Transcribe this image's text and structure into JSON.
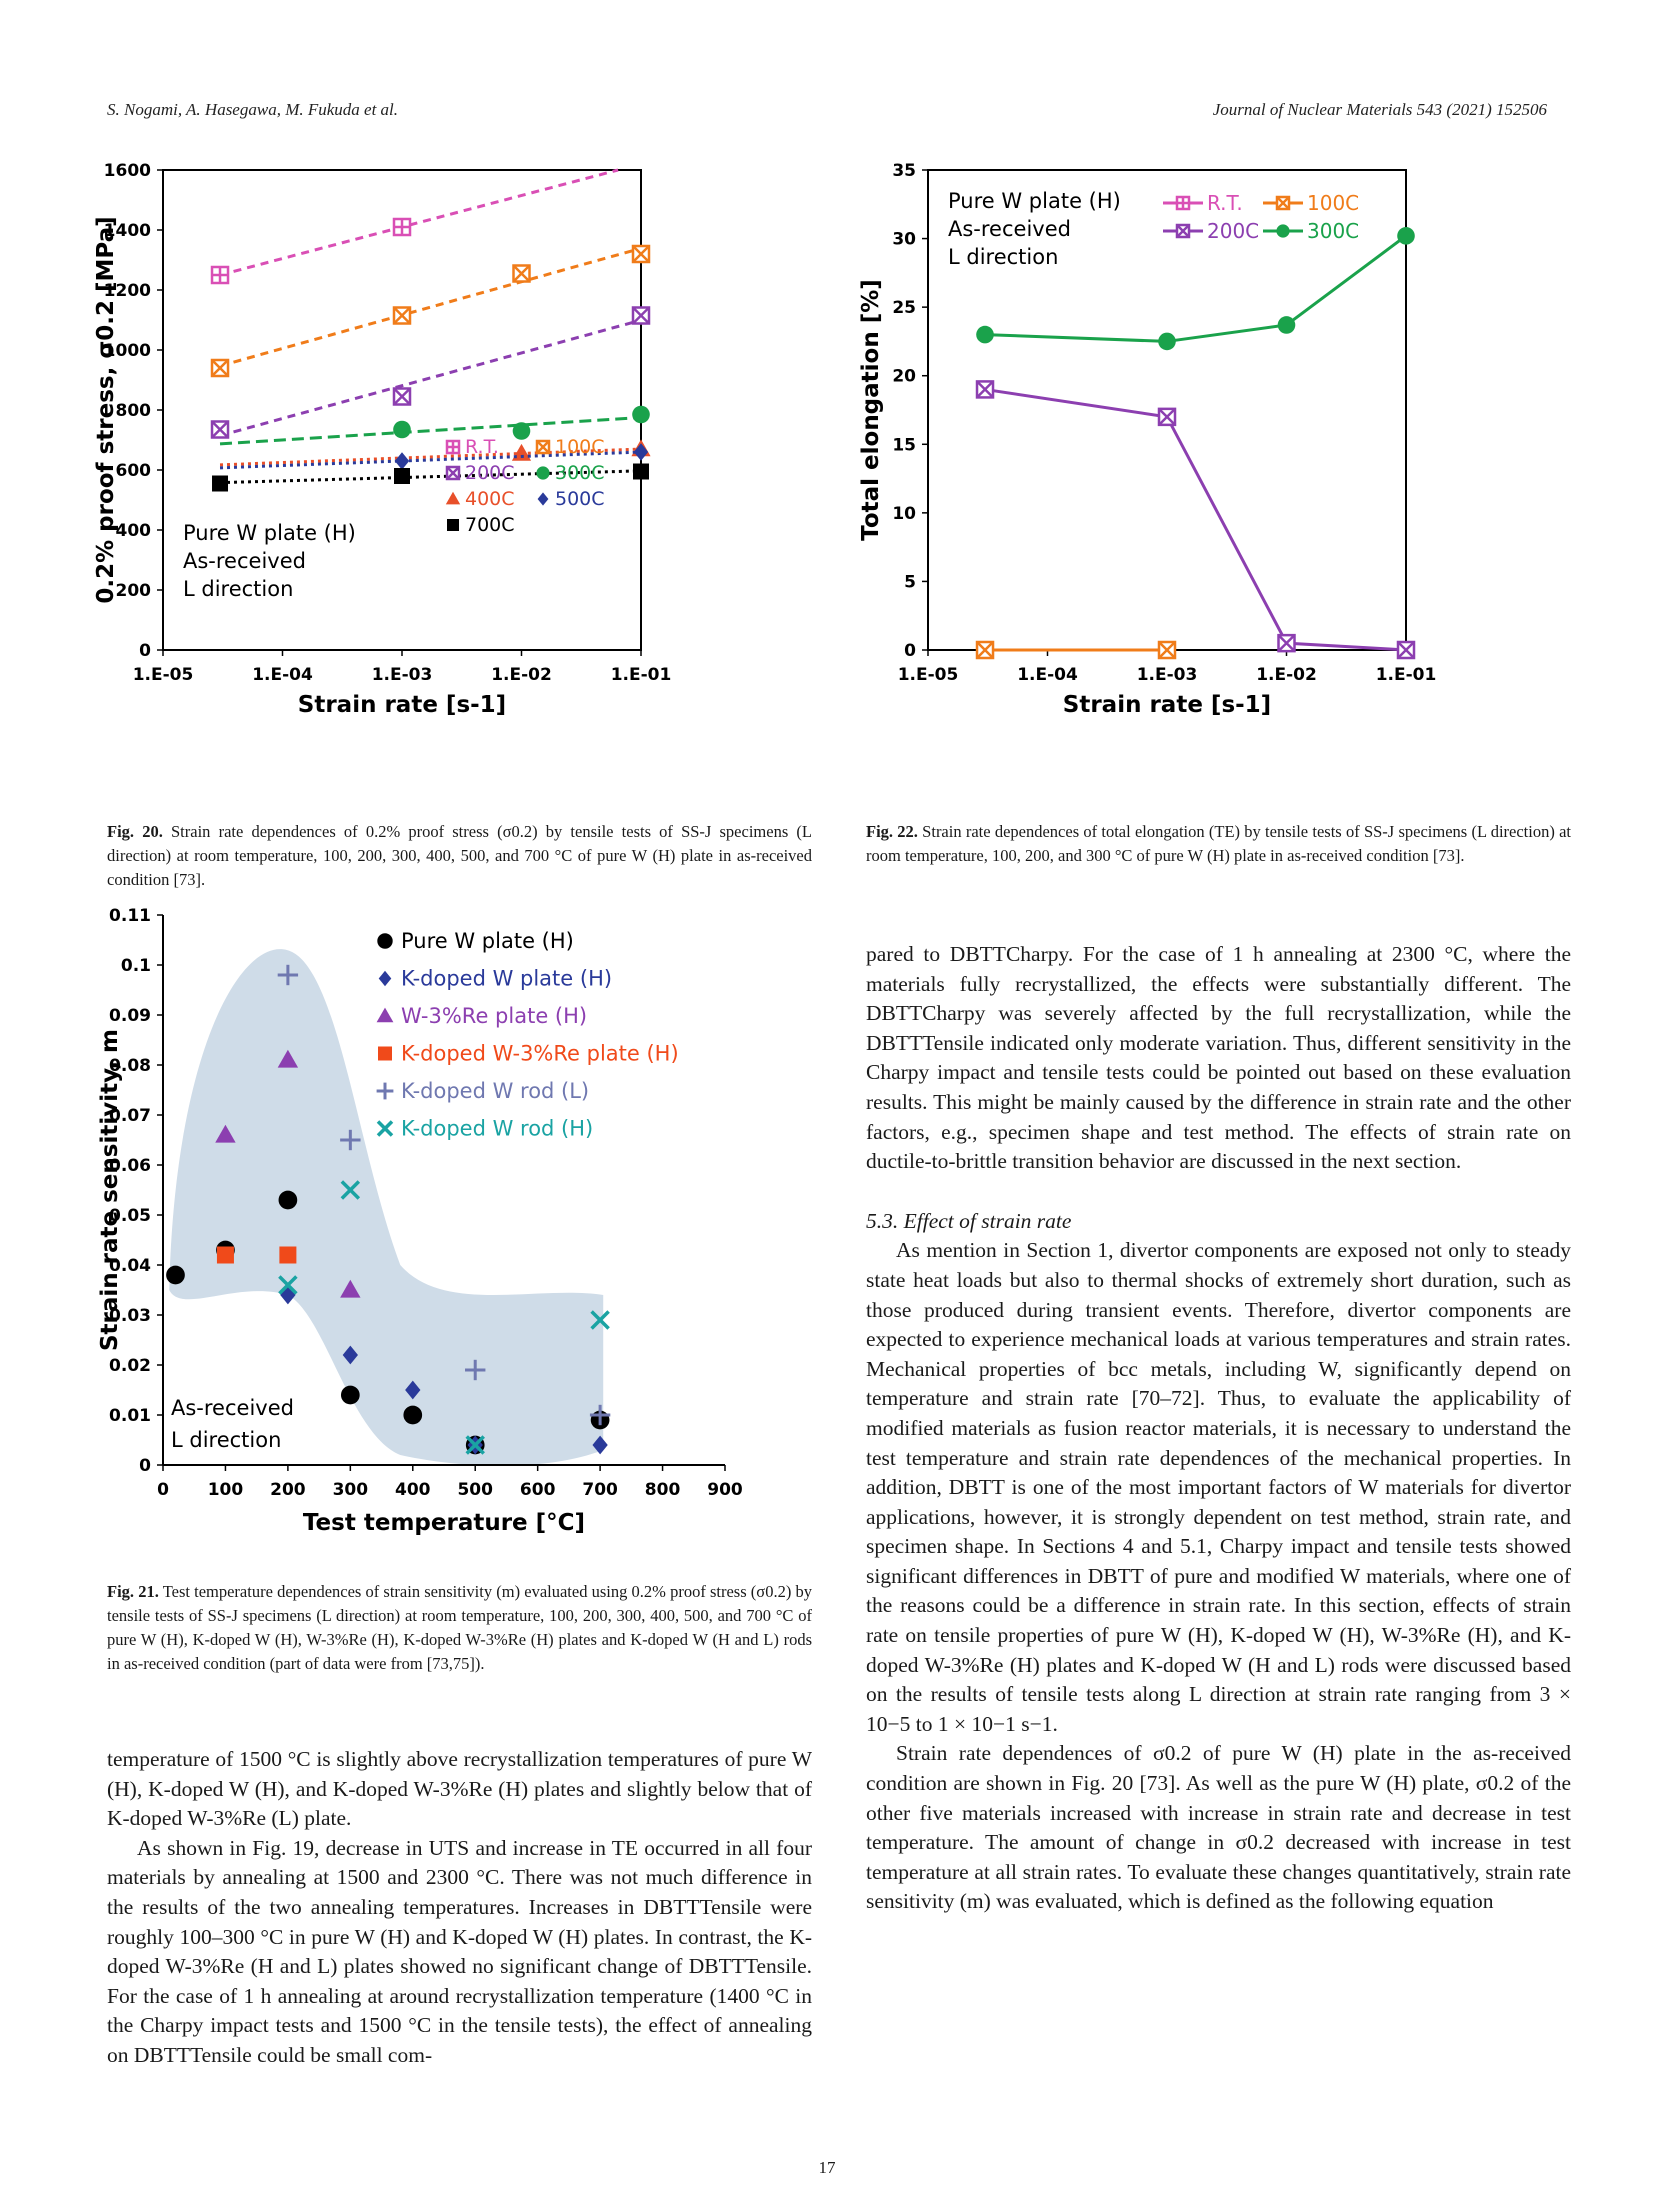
{
  "header": {
    "authors": "S. Nogami, A. Hasegawa, M. Fukuda et al.",
    "journal": "Journal of Nuclear Materials 543 (2021) 152506"
  },
  "page_number": "17",
  "chart_data": [
    {
      "id": "fig20",
      "type": "scatter",
      "xscale": "log",
      "xlim": [
        1e-05,
        0.1
      ],
      "ylim": [
        0,
        1600
      ],
      "x_ticks": [
        "1.E-05",
        "1.E-04",
        "1.E-03",
        "1.E-02",
        "1.E-01"
      ],
      "y_ticks": [
        "0",
        "200",
        "400",
        "600",
        "800",
        "1000",
        "1200",
        "1400",
        "1600"
      ],
      "xlabel": "Strain rate [s-1]",
      "ylabel": "0.2% proof stress, σ0.2 [MPa]",
      "annotation": [
        "Pure W plate (H)",
        "As-received",
        "L direction"
      ],
      "series": [
        {
          "name": "R.T.",
          "color": "#d94fb5",
          "marker": "boxplus",
          "x": [
            3e-05,
            0.001
          ],
          "y": [
            1250,
            1410
          ]
        },
        {
          "name": "100C",
          "color": "#f07c1a",
          "marker": "boxx",
          "x": [
            3e-05,
            0.001,
            0.01,
            0.1
          ],
          "y": [
            940,
            1115,
            1255,
            1320
          ]
        },
        {
          "name": "200C",
          "color": "#8c3fb0",
          "marker": "boxx",
          "x": [
            3e-05,
            0.001,
            0.1
          ],
          "y": [
            735,
            845,
            1115
          ]
        },
        {
          "name": "300C",
          "color": "#1aa24b",
          "marker": "circle",
          "x": [
            0.001,
            0.01,
            0.1
          ],
          "y": [
            735,
            730,
            785
          ]
        },
        {
          "name": "400C",
          "color": "#e8502a",
          "marker": "triangle",
          "x": [
            0.01,
            0.1
          ],
          "y": [
            655,
            670
          ]
        },
        {
          "name": "500C",
          "color": "#2a3a9a",
          "marker": "diamond",
          "x": [
            0.001,
            0.1
          ],
          "y": [
            630,
            660
          ]
        },
        {
          "name": "700C",
          "color": "#000000",
          "marker": "square",
          "x": [
            3e-05,
            0.001,
            0.1
          ],
          "y": [
            555,
            580,
            595
          ]
        }
      ]
    },
    {
      "id": "fig22",
      "type": "line",
      "xscale": "log",
      "xlim": [
        1e-05,
        0.1
      ],
      "ylim": [
        0,
        35
      ],
      "x_ticks": [
        "1.E-05",
        "1.E-04",
        "1.E-03",
        "1.E-02",
        "1.E-01"
      ],
      "y_ticks": [
        "0",
        "5",
        "10",
        "15",
        "20",
        "25",
        "30",
        "35"
      ],
      "xlabel": "Strain rate [s-1]",
      "ylabel": "Total elongation [%]",
      "annotation": [
        "Pure W plate (H)",
        "As-received",
        "L direction"
      ],
      "series": [
        {
          "name": "R.T.",
          "color": "#d94fb5",
          "marker": "boxplus",
          "x": [],
          "y": []
        },
        {
          "name": "100C",
          "color": "#f07c1a",
          "marker": "boxx",
          "x": [
            3e-05,
            0.001
          ],
          "y": [
            0,
            0
          ]
        },
        {
          "name": "200C",
          "color": "#8c3fb0",
          "marker": "boxx",
          "x": [
            3e-05,
            0.001,
            0.01,
            0.1
          ],
          "y": [
            19,
            17,
            0.5,
            0
          ]
        },
        {
          "name": "300C",
          "color": "#1aa24b",
          "marker": "circle",
          "x": [
            3e-05,
            0.001,
            0.01,
            0.1
          ],
          "y": [
            23,
            22.5,
            23.7,
            30.2
          ]
        }
      ]
    },
    {
      "id": "fig21",
      "type": "scatter",
      "xlim": [
        0,
        900
      ],
      "ylim": [
        0,
        0.11
      ],
      "x_ticks": [
        "0",
        "100",
        "200",
        "300",
        "400",
        "500",
        "600",
        "700",
        "800",
        "900"
      ],
      "y_ticks": [
        "0",
        "0.01",
        "0.02",
        "0.03",
        "0.04",
        "0.05",
        "0.06",
        "0.07",
        "0.08",
        "0.09",
        "0.1",
        "0.11"
      ],
      "xlabel": "Test temperature [°C]",
      "ylabel": "Strain rate sensitivity, m",
      "annotation": [
        "As-received",
        "L direction"
      ],
      "series": [
        {
          "name": "Pure W plate (H)",
          "color": "#000000",
          "marker": "circle",
          "x": [
            20,
            100,
            200,
            300,
            400,
            500,
            700
          ],
          "y": [
            0.038,
            0.043,
            0.053,
            0.014,
            0.01,
            0.004,
            0.009
          ]
        },
        {
          "name": "K-doped W plate (H)",
          "color": "#2a3a9a",
          "marker": "diamond",
          "x": [
            200,
            300,
            400,
            500,
            700
          ],
          "y": [
            0.034,
            0.022,
            0.015,
            0.004,
            0.004
          ]
        },
        {
          "name": "W-3%Re plate (H)",
          "color": "#8c3fb0",
          "marker": "triangle",
          "x": [
            100,
            200,
            300
          ],
          "y": [
            0.066,
            0.081,
            0.035
          ]
        },
        {
          "name": "K-doped W-3%Re plate (H)",
          "color": "#f04a1a",
          "marker": "square",
          "x": [
            100,
            200
          ],
          "y": [
            0.042,
            0.042
          ]
        },
        {
          "name": "K-doped W rod (L)",
          "color": "#6f78b0",
          "marker": "plus",
          "x": [
            200,
            300,
            500,
            700
          ],
          "y": [
            0.098,
            0.065,
            0.019,
            0.01
          ]
        },
        {
          "name": "K-doped W rod (H)",
          "color": "#1aa3a3",
          "marker": "x",
          "x": [
            200,
            300,
            500,
            700
          ],
          "y": [
            0.036,
            0.055,
            0.004,
            0.029
          ]
        }
      ]
    }
  ],
  "captions": {
    "fig20_label": "Fig. 20.",
    "fig20": " Strain rate dependences of 0.2% proof stress (σ0.2) by tensile tests of SS-J specimens (L direction) at room temperature, 100, 200, 300, 400, 500, and 700 °C of pure W (H) plate in as-received condition [73].",
    "fig22_label": "Fig. 22.",
    "fig22": " Strain rate dependences of total elongation (TE) by tensile tests of SS-J specimens (L direction) at room temperature, 100, 200, and 300 °C of pure W (H) plate in as-received condition [73].",
    "fig21_label": "Fig. 21.",
    "fig21": " Test temperature dependences of strain sensitivity (m) evaluated using 0.2% proof stress (σ0.2) by tensile tests of SS-J specimens (L direction) at room temperature, 100, 200, 300, 400, 500, and 700 °C of pure W (H), K-doped W (H), W-3%Re (H), K-doped W-3%Re (H) plates and K-doped W (H and L) rods in as-received condition (part of data were from [73,75])."
  },
  "left_column": [
    "temperature of 1500 °C is slightly above recrystallization temperatures of pure W (H), K-doped W (H), and K-doped W-3%Re (H) plates and slightly below that of K-doped W-3%Re (L) plate.",
    "As shown in Fig. 19, decrease in UTS and increase in TE occurred in all four materials by annealing at 1500 and 2300 °C. There was not much difference in the results of the two annealing temperatures. Increases in DBTTTensile were roughly 100–300 °C in pure W (H) and K-doped W (H) plates. In contrast, the K-doped W-3%Re (H and L) plates showed no significant change of DBTTTensile. For the case of 1 h annealing at around recrystallization temperature (1400 °C in the Charpy impact tests and 1500 °C in the tensile tests), the effect of annealing on DBTTTensile could be small com-"
  ],
  "right_column": {
    "p1": "pared to DBTTCharpy. For the case of 1 h annealing at 2300 °C, where the materials fully recrystallized, the effects were substantially different. The DBTTCharpy was severely affected by the full recrystallization, while the DBTTTensile indicated only moderate variation. Thus, different sensitivity in the Charpy impact and tensile tests could be pointed out based on these evaluation results. This might be mainly caused by the difference in strain rate and the other factors, e.g., specimen shape and test method. The effects of strain rate on ductile-to-brittle transition behavior are discussed in the next section.",
    "section_title": "5.3. Effect of strain rate",
    "p2": "As mention in Section 1, divertor components are exposed not only to steady state heat loads but also to thermal shocks of extremely short duration, such as those produced during transient events. Therefore, divertor components are expected to experience mechanical loads at various temperatures and strain rates. Mechanical properties of bcc metals, including W, significantly depend on temperature and strain rate [70–72]. Thus, to evaluate the applicability of modified materials as fusion reactor materials, it is necessary to understand the test temperature and strain rate dependences of the mechanical properties. In addition, DBTT is one of the most important factors of W materials for divertor applications, however, it is strongly dependent on test method, strain rate, and specimen shape. In Sections 4 and 5.1, Charpy impact and tensile tests showed significant differences in DBTT of pure and modified W materials, where one of the reasons could be a difference in strain rate. In this section, effects of strain rate on tensile properties of pure W (H), K-doped W (H), W-3%Re (H), and K-doped W-3%Re (H) plates and K-doped W (H and L) rods were discussed based on the results of tensile tests along L direction at strain rate ranging from 3 × 10−5 to 1 × 10−1 s−1.",
    "p3": "Strain rate dependences of σ0.2 of pure W (H) plate in the as-received condition are shown in Fig. 20 [73]. As well as the pure W (H) plate, σ0.2 of the other five materials increased with increase in strain rate and decrease in test temperature. The amount of change in σ0.2 decreased with increase in test temperature at all strain rates. To evaluate these changes quantitatively, strain rate sensitivity (m) was evaluated, which is defined as the following equation"
  }
}
